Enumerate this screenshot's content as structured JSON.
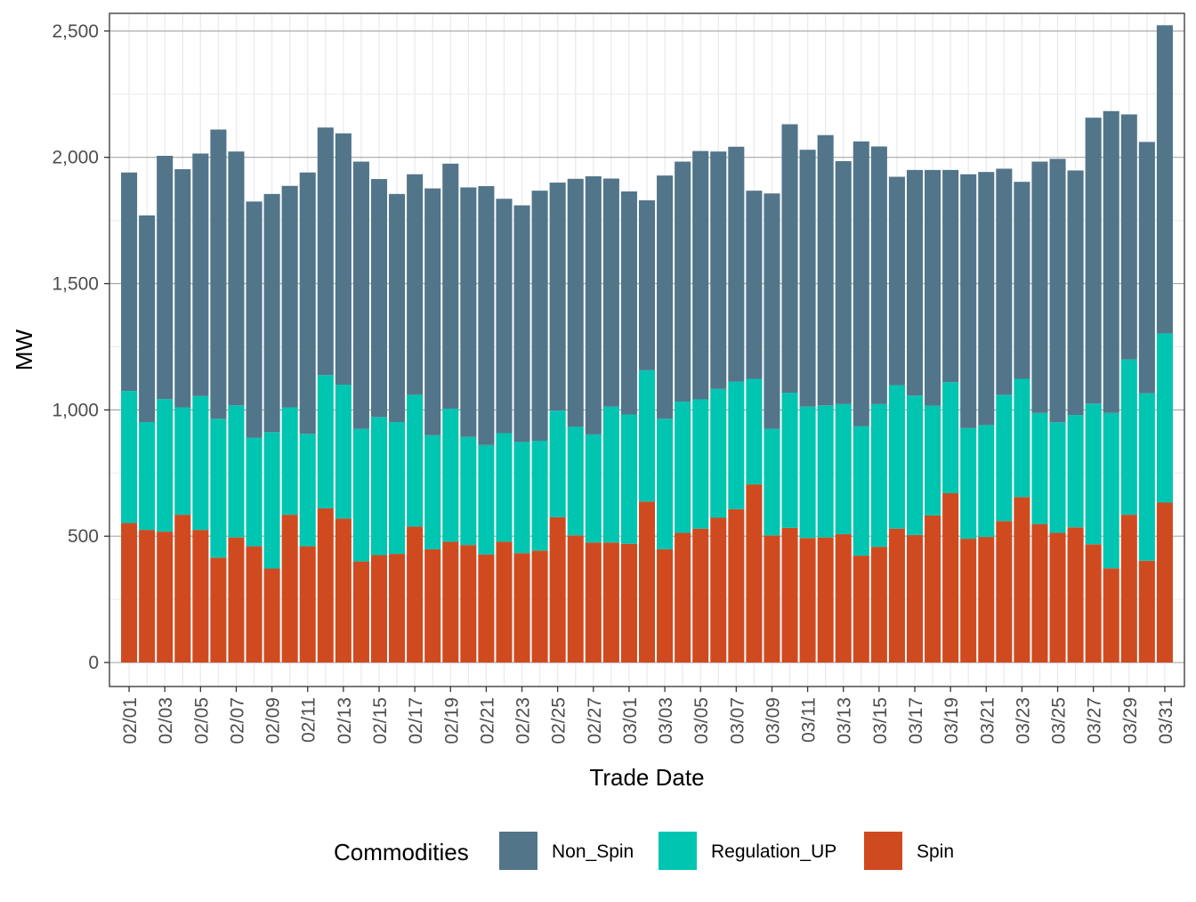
{
  "chart_data": {
    "type": "bar",
    "stacked": true,
    "title": "",
    "xlabel": "Trade Date",
    "ylabel": "MW",
    "ylim": [
      -95,
      2570
    ],
    "yticks": [
      0,
      500,
      1000,
      1500,
      2000,
      2500
    ],
    "ytick_labels": [
      "0",
      "500",
      "1,000",
      "1,500",
      "2,000",
      "2,500"
    ],
    "grid": true,
    "legend_position": "bottom",
    "legend_title": "Commodities",
    "categories": [
      "02/01",
      "02/02",
      "02/03",
      "02/04",
      "02/05",
      "02/06",
      "02/07",
      "02/08",
      "02/09",
      "02/10",
      "02/11",
      "02/12",
      "02/13",
      "02/14",
      "02/15",
      "02/16",
      "02/17",
      "02/18",
      "02/19",
      "02/20",
      "02/21",
      "02/22",
      "02/23",
      "02/24",
      "02/25",
      "02/26",
      "02/27",
      "02/28",
      "03/01",
      "03/02",
      "03/03",
      "03/04",
      "03/05",
      "03/06",
      "03/07",
      "03/08",
      "03/09",
      "03/10",
      "03/11",
      "03/12",
      "03/13",
      "03/14",
      "03/15",
      "03/16",
      "03/17",
      "03/18",
      "03/19",
      "03/20",
      "03/21",
      "03/22",
      "03/23",
      "03/24",
      "03/25",
      "03/26",
      "03/27",
      "03/28",
      "03/29",
      "03/30",
      "03/31"
    ],
    "xtick_labels": [
      "02/01",
      "02/03",
      "02/05",
      "02/07",
      "02/09",
      "02/11",
      "02/13",
      "02/15",
      "02/17",
      "02/19",
      "02/21",
      "02/23",
      "02/25",
      "02/27",
      "03/01",
      "03/03",
      "03/05",
      "03/07",
      "03/09",
      "03/11",
      "03/13",
      "03/15",
      "03/17",
      "03/19",
      "03/21",
      "03/23",
      "03/25",
      "03/27",
      "03/29",
      "03/31"
    ],
    "series": [
      {
        "name": "Spin",
        "color": "#d04a20",
        "values": [
          552,
          525,
          518,
          585,
          525,
          415,
          495,
          460,
          372,
          585,
          460,
          610,
          570,
          400,
          425,
          430,
          538,
          448,
          478,
          465,
          428,
          478,
          433,
          443,
          575,
          503,
          475,
          475,
          470,
          637,
          448,
          513,
          530,
          573,
          607,
          705,
          503,
          533,
          493,
          495,
          508,
          423,
          458,
          530,
          505,
          582,
          670,
          490,
          497,
          560,
          655,
          548,
          513,
          535,
          468,
          373,
          585,
          403,
          633
        ]
      },
      {
        "name": "Regulation_UP",
        "color": "#00c5b0",
        "values": [
          523,
          427,
          525,
          425,
          530,
          550,
          523,
          430,
          540,
          425,
          445,
          528,
          530,
          525,
          547,
          522,
          522,
          452,
          527,
          428,
          433,
          430,
          440,
          435,
          422,
          430,
          428,
          538,
          512,
          520,
          517,
          520,
          512,
          510,
          505,
          418,
          422,
          535,
          520,
          523,
          515,
          513,
          565,
          568,
          552,
          435,
          440,
          438,
          443,
          500,
          468,
          440,
          438,
          445,
          557,
          615,
          615,
          663,
          670
        ]
      },
      {
        "name": "Non_Spin",
        "color": "#52758a",
        "values": [
          865,
          818,
          963,
          943,
          960,
          1145,
          1005,
          935,
          943,
          877,
          1035,
          980,
          995,
          1058,
          942,
          903,
          873,
          977,
          970,
          988,
          1025,
          928,
          937,
          990,
          903,
          982,
          1022,
          903,
          883,
          673,
          963,
          950,
          983,
          940,
          930,
          745,
          932,
          1063,
          1017,
          1070,
          962,
          1127,
          1020,
          825,
          893,
          933,
          840,
          1005,
          1002,
          895,
          780,
          995,
          1043,
          968,
          1132,
          1195,
          970,
          995,
          1220
        ]
      }
    ]
  }
}
